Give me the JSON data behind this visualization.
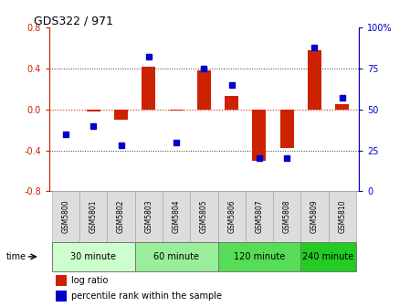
{
  "title": "GDS322 / 971",
  "samples": [
    "GSM5800",
    "GSM5801",
    "GSM5802",
    "GSM5803",
    "GSM5804",
    "GSM5805",
    "GSM5806",
    "GSM5807",
    "GSM5808",
    "GSM5809",
    "GSM5810"
  ],
  "log_ratio": [
    0.0,
    -0.02,
    -0.1,
    0.42,
    -0.01,
    0.38,
    0.13,
    -0.5,
    -0.38,
    0.58,
    0.05
  ],
  "percentile": [
    35,
    40,
    28,
    82,
    30,
    75,
    65,
    20,
    20,
    88,
    57
  ],
  "group_defs": [
    {
      "label": "30 minute",
      "start": 0,
      "end": 3,
      "color": "#ccffcc"
    },
    {
      "label": "60 minute",
      "start": 3,
      "end": 6,
      "color": "#99ee99"
    },
    {
      "label": "120 minute",
      "start": 6,
      "end": 9,
      "color": "#55dd55"
    },
    {
      "label": "240 minute",
      "start": 9,
      "end": 11,
      "color": "#22cc22"
    }
  ],
  "ylim_left": [
    -0.8,
    0.8
  ],
  "ylim_right": [
    0,
    100
  ],
  "yticks_left": [
    -0.8,
    -0.4,
    0.0,
    0.4,
    0.8
  ],
  "yticks_right": [
    0,
    25,
    50,
    75,
    100
  ],
  "bar_color": "#cc2200",
  "dot_color": "#0000cc",
  "hline_color": "#cc2200",
  "grid_color": "#333333",
  "left_axis_color": "#cc2200",
  "right_axis_color": "#0000cc",
  "time_label": "time",
  "legend_log": "log ratio",
  "legend_pct": "percentile rank within the sample",
  "bg_color": "white",
  "plot_bg": "white",
  "sample_cell_color": "#dddddd",
  "sample_cell_edge": "#aaaaaa"
}
